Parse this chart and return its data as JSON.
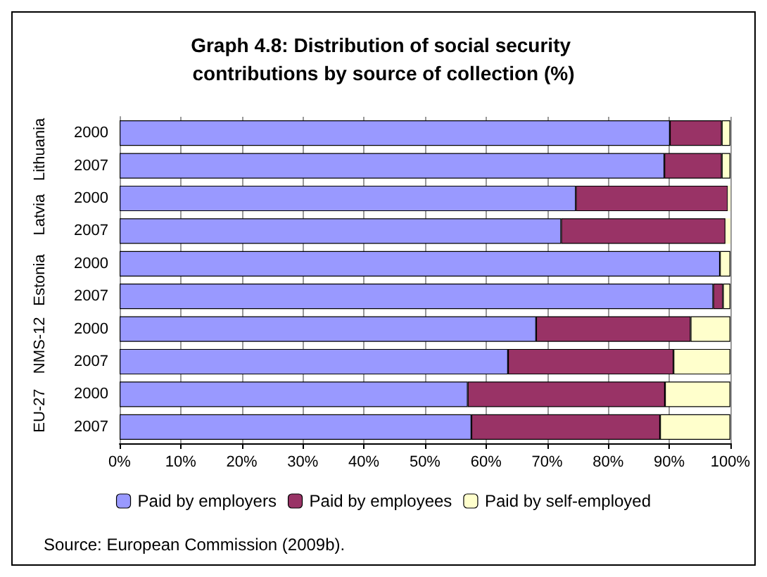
{
  "chart_data": {
    "type": "bar",
    "orientation": "horizontal",
    "stacked": true,
    "title": "Graph 4.8: Distribution of social security contributions by source of collection (%)",
    "categories": [
      "2000",
      "2007",
      "2000",
      "2007",
      "2000",
      "2007",
      "2000",
      "2007",
      "2000",
      "2007"
    ],
    "series": [
      {
        "name": "Paid by employers",
        "color": "#9999ff",
        "values": [
          90.1,
          89.2,
          74.7,
          72.3,
          98.3,
          97.2,
          68.2,
          63.6,
          57.0,
          57.6
        ]
      },
      {
        "name": "Paid by employees",
        "color": "#993366",
        "values": [
          8.5,
          9.4,
          24.9,
          26.9,
          0,
          1.6,
          25.3,
          27.1,
          32.3,
          30.9
        ]
      },
      {
        "name": "Paid by self-employed",
        "color": "#ffffcc",
        "values": [
          1.4,
          1.4,
          0.4,
          0.8,
          1.7,
          1.2,
          6.5,
          9.3,
          10.7,
          11.5
        ]
      }
    ],
    "xlim": [
      0,
      100
    ],
    "xticks": [
      {
        "value": 0,
        "label": "0%"
      },
      {
        "value": 10,
        "label": "10%"
      },
      {
        "value": 20,
        "label": "20%"
      },
      {
        "value": 30,
        "label": "30%"
      },
      {
        "value": 40,
        "label": "40%"
      },
      {
        "value": 50,
        "label": "50%"
      },
      {
        "value": 60,
        "label": "60%"
      },
      {
        "value": 70,
        "label": "70%"
      },
      {
        "value": 80,
        "label": "80%"
      },
      {
        "value": 90,
        "label": "90%"
      },
      {
        "value": 100,
        "label": "100%"
      }
    ],
    "grid": "x",
    "legend": "bottom",
    "annotations": [
      "Lithuania",
      "Latvia",
      "Estonia",
      "NMS-12",
      "EU-27",
      "Source: European Commission (2009b)."
    ]
  }
}
